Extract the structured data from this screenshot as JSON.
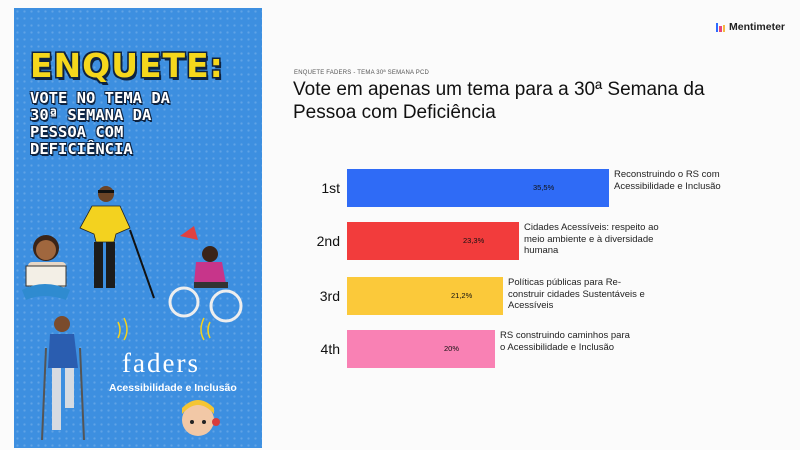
{
  "poster": {
    "heading": "ENQUETE:",
    "subtitle_lines": [
      "VOTE NO TEMA DA",
      "30ª SEMANA DA",
      "PESSOA COM",
      "DEFICIÊNCIA"
    ],
    "org_name": "faders",
    "org_tagline": "Acessibilidade e Inclusão"
  },
  "brand": {
    "name": "Mentimeter",
    "colors": [
      "#2d6bff",
      "#e8467c",
      "#f5b841"
    ]
  },
  "slide": {
    "eyebrow": "ENQUETE FADERS - TEMA 30ª SEMANA PCD",
    "title": "Vote em apenas um tema para a 30ª Semana da Pessoa com Deficiência"
  },
  "results": [
    {
      "rank": "1st",
      "percent_label": "35,5%",
      "percent": 35.5,
      "color": "#2f6bf6",
      "label": "Reconstruindo o RS com Acessibilidade e Inclusão"
    },
    {
      "rank": "2nd",
      "percent_label": "23,3%",
      "percent": 23.3,
      "color": "#f23c3c",
      "label": "Cidades Acessíveis: respeito ao meio ambiente e à diversidade humana"
    },
    {
      "rank": "3rd",
      "percent_label": "21,2%",
      "percent": 21.2,
      "color": "#fbc93a",
      "label": "Políticas públicas para Re- construir cidades Sustentáveis e Acessíveis"
    },
    {
      "rank": "4th",
      "percent_label": "20%",
      "percent": 20,
      "color": "#f981b4",
      "label": "RS construindo caminhos para o Acessibilidade e Inclusão"
    }
  ]
}
